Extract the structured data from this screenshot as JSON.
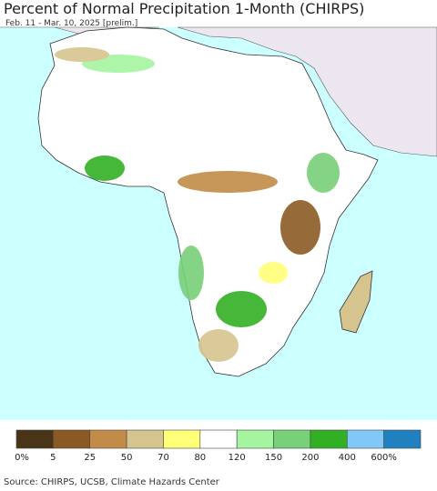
{
  "header": {
    "title": "Percent of Normal Precipitation 1-Month (CHIRPS)",
    "subtitle": "Feb. 11 - Mar. 10, 2025 [prelim.]"
  },
  "legend": {
    "colors": [
      "#4a3418",
      "#8b5a24",
      "#c28c48",
      "#d6c48e",
      "#ffff78",
      "#ffffff",
      "#a4f4a0",
      "#78d078",
      "#32b024",
      "#80c8f8",
      "#2080c0"
    ],
    "labels": [
      "0%",
      "5",
      "25",
      "50",
      "70",
      "80",
      "120",
      "150",
      "200",
      "400",
      "600%"
    ]
  },
  "footer": {
    "source": "Source: CHIRPS, UCSB, Climate Hazards Center"
  }
}
